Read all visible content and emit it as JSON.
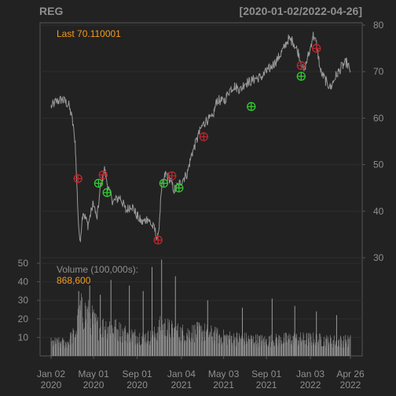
{
  "chart_data": {
    "type": "line",
    "title": "REG",
    "date_range_label": "[2020-01-02/2022-04-26]",
    "last_label": "Last 70.110001",
    "volume_label": "Volume (100,000s):",
    "volume_last": "868,600",
    "price_axis": {
      "ticks": [
        30,
        40,
        50,
        60,
        70,
        80
      ],
      "range": [
        30,
        80.5
      ]
    },
    "volume_axis": {
      "ticks": [
        10,
        20,
        30,
        40,
        50
      ],
      "range": [
        0,
        53
      ]
    },
    "x_ticks": [
      {
        "top": "Jan 02",
        "bottom": "2020",
        "date": "2020-01-02"
      },
      {
        "top": "May 01",
        "bottom": "2020",
        "date": "2020-05-01"
      },
      {
        "top": "Sep 01",
        "bottom": "2020",
        "date": "2020-09-01"
      },
      {
        "top": "Jan 04",
        "bottom": "2021",
        "date": "2021-01-04"
      },
      {
        "top": "May 03",
        "bottom": "2021",
        "date": "2021-05-03"
      },
      {
        "top": "Sep 01",
        "bottom": "2021",
        "date": "2021-09-01"
      },
      {
        "top": "Jan 03",
        "bottom": "2022",
        "date": "2022-01-03"
      },
      {
        "top": "Apr 26",
        "bottom": "2022",
        "date": "2022-04-26"
      }
    ],
    "x_range": [
      "2020-01-02",
      "2022-04-26"
    ],
    "price_series": {
      "dates": [
        "2020-01-02",
        "2020-01-15",
        "2020-02-01",
        "2020-02-20",
        "2020-03-01",
        "2020-03-10",
        "2020-03-15",
        "2020-03-19",
        "2020-03-23",
        "2020-04-01",
        "2020-04-15",
        "2020-05-01",
        "2020-05-10",
        "2020-05-20",
        "2020-06-01",
        "2020-06-08",
        "2020-06-15",
        "2020-06-25",
        "2020-07-15",
        "2020-08-01",
        "2020-08-15",
        "2020-09-01",
        "2020-09-15",
        "2020-10-01",
        "2020-10-20",
        "2020-10-30",
        "2020-11-09",
        "2020-11-20",
        "2020-12-01",
        "2020-12-15",
        "2021-01-04",
        "2021-01-20",
        "2021-02-01",
        "2021-02-15",
        "2021-03-01",
        "2021-03-15",
        "2021-04-01",
        "2021-04-15",
        "2021-05-03",
        "2021-05-20",
        "2021-06-01",
        "2021-06-20",
        "2021-07-01",
        "2021-07-20",
        "2021-08-01",
        "2021-08-20",
        "2021-09-01",
        "2021-09-20",
        "2021-10-01",
        "2021-10-20",
        "2021-11-01",
        "2021-11-15",
        "2021-12-01",
        "2021-12-15",
        "2022-01-03",
        "2022-01-10",
        "2022-01-20",
        "2022-02-01",
        "2022-02-15",
        "2022-03-01",
        "2022-03-15",
        "2022-04-01",
        "2022-04-15",
        "2022-04-26"
      ],
      "values": [
        62.5,
        63.5,
        64.0,
        63.0,
        60.0,
        55.0,
        45.0,
        38.0,
        33.0,
        40.0,
        37.0,
        42.0,
        38.0,
        45.0,
        49.0,
        46.0,
        44.0,
        42.0,
        43.0,
        40.0,
        41.5,
        39.0,
        37.5,
        38.5,
        36.0,
        34.0,
        45.0,
        48.0,
        47.0,
        44.5,
        46.5,
        48.0,
        52.0,
        55.0,
        58.0,
        59.5,
        60.0,
        64.0,
        63.5,
        66.0,
        67.0,
        66.0,
        67.5,
        68.0,
        68.5,
        69.0,
        70.0,
        71.5,
        72.5,
        75.0,
        77.0,
        76.5,
        74.0,
        70.0,
        75.0,
        78.0,
        76.0,
        70.0,
        68.0,
        66.5,
        69.0,
        71.0,
        72.0,
        70.11
      ]
    },
    "buy_markers": [
      {
        "date": "2020-05-15",
        "value": 46.0
      },
      {
        "date": "2020-06-08",
        "value": 44.0
      },
      {
        "date": "2020-11-15",
        "value": 46.0
      },
      {
        "date": "2020-12-28",
        "value": 45.0
      },
      {
        "date": "2021-07-20",
        "value": 62.5
      },
      {
        "date": "2021-12-08",
        "value": 69.0
      }
    ],
    "sell_markers": [
      {
        "date": "2020-03-18",
        "value": 47.0
      },
      {
        "date": "2020-05-28",
        "value": 47.8
      },
      {
        "date": "2020-10-30",
        "value": 33.8
      },
      {
        "date": "2020-12-08",
        "value": 47.6
      },
      {
        "date": "2021-03-08",
        "value": 56.0
      },
      {
        "date": "2021-12-08",
        "value": 71.3
      },
      {
        "date": "2022-01-20",
        "value": 75.0
      }
    ],
    "volume_profile": {
      "dates": [
        "2020-01-02",
        "2020-02-15",
        "2020-03-10",
        "2020-03-25",
        "2020-04-15",
        "2020-05-15",
        "2020-06-15",
        "2020-07-15",
        "2020-08-15",
        "2020-09-15",
        "2020-10-15",
        "2020-11-09",
        "2020-12-15",
        "2021-01-15",
        "2021-03-01",
        "2021-05-01",
        "2021-07-01",
        "2021-09-01",
        "2021-11-01",
        "2022-01-03",
        "2022-03-01",
        "2022-04-26"
      ],
      "values": [
        7,
        7,
        12,
        24,
        22,
        15,
        16,
        13,
        11,
        10,
        10,
        16,
        13,
        12,
        13,
        10,
        9,
        8,
        9,
        9,
        8,
        8
      ]
    },
    "volume_spikes": [
      {
        "date": "2020-03-20",
        "value": 35
      },
      {
        "date": "2020-04-20",
        "value": 38
      },
      {
        "date": "2020-05-20",
        "value": 33
      },
      {
        "date": "2020-06-19",
        "value": 41
      },
      {
        "date": "2020-08-10",
        "value": 38
      },
      {
        "date": "2020-09-18",
        "value": 35
      },
      {
        "date": "2020-10-13",
        "value": 48
      },
      {
        "date": "2020-11-09",
        "value": 52
      },
      {
        "date": "2020-12-18",
        "value": 43
      },
      {
        "date": "2021-03-19",
        "value": 30
      },
      {
        "date": "2021-06-25",
        "value": 26
      },
      {
        "date": "2021-09-17",
        "value": 31
      },
      {
        "date": "2021-11-20",
        "value": 27
      },
      {
        "date": "2022-01-20",
        "value": 24
      },
      {
        "date": "2022-03-18",
        "value": 22
      }
    ]
  }
}
